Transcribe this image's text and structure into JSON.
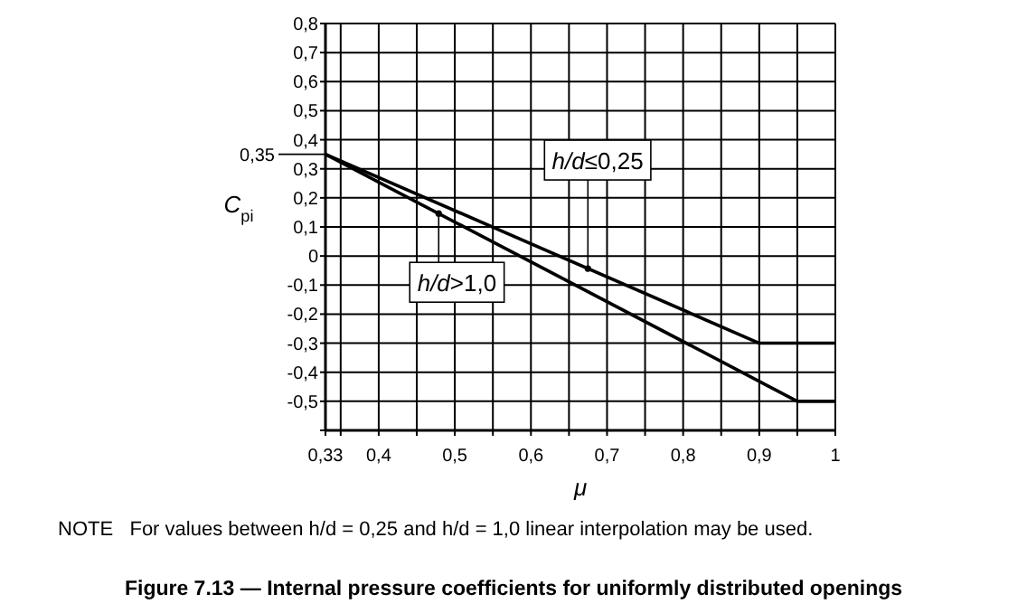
{
  "chart_data": {
    "type": "line",
    "title": "Figure 7.13 — Internal pressure coefficients for uniformly distributed openings",
    "xlabel": "μ",
    "ylabel": "C$_{pi}$",
    "annotations": [
      "NOTE   For values between h/d = 0,25 and h/d = 1,0 linear interpolation may be used."
    ],
    "series": [
      {
        "name": "h/d≤0,25",
        "color": "#000000",
        "x": [
          0.33,
          0.9,
          1
        ],
        "values": [
          0.35,
          -0.3,
          -0.3
        ]
      },
      {
        "name": "h/d>1,0",
        "color": "#000000",
        "x": [
          0.33,
          0.95,
          1
        ],
        "values": [
          0.35,
          -0.5,
          -0.5
        ]
      }
    ],
    "xlim": [
      0.33,
      1
    ],
    "xticks": [
      {
        "value": 0.33,
        "label": "0,33"
      },
      {
        "value": 0.35,
        "label": null
      },
      {
        "value": 0.4,
        "label": "0,4"
      },
      {
        "value": 0.45,
        "label": null
      },
      {
        "value": 0.5,
        "label": "0,5"
      },
      {
        "value": 0.55,
        "label": null
      },
      {
        "value": 0.6,
        "label": "0,6"
      },
      {
        "value": 0.65,
        "label": null
      },
      {
        "value": 0.7,
        "label": "0,7"
      },
      {
        "value": 0.75,
        "label": null
      },
      {
        "value": 0.8,
        "label": "0,8"
      },
      {
        "value": 0.85,
        "label": null
      },
      {
        "value": 0.9,
        "label": "0,9"
      },
      {
        "value": 0.95,
        "label": null
      },
      1
    ],
    "ylim": [
      -0.6,
      0.8
    ],
    "yticks": [
      {
        "value": -0.6,
        "label": null
      },
      {
        "value": -0.5,
        "label": "-0,5"
      },
      {
        "value": -0.4,
        "label": "-0,4"
      },
      {
        "value": -0.3,
        "label": "-0,3"
      },
      {
        "value": -0.2,
        "label": "-0,2"
      },
      {
        "value": -0.1,
        "label": "-0,1"
      },
      0,
      {
        "value": 0.1,
        "label": "0,1"
      },
      {
        "value": 0.2,
        "label": "0,2"
      },
      {
        "value": 0.3,
        "label": "0,3"
      },
      {
        "value": 0.4,
        "label": "0,4"
      },
      {
        "value": 0.5,
        "label": "0,5"
      },
      {
        "value": 0.6,
        "label": "0,6"
      },
      {
        "value": 0.7,
        "label": "0,7"
      },
      {
        "value": 0.8,
        "label": "0,8"
      }
    ],
    "ref_lines": [
      {
        "axis": "y",
        "value": 0.35,
        "label": "0,35"
      }
    ],
    "grid": true,
    "line_style": "solid",
    "marker": "none"
  }
}
